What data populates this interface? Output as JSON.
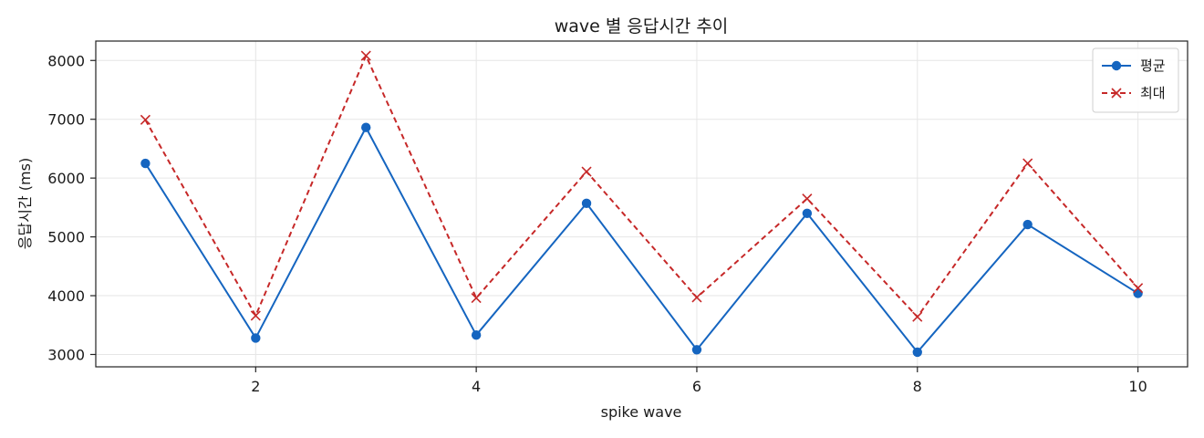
{
  "chart_data": {
    "type": "line",
    "title": "wave 별 응답시간 추이",
    "xlabel": "spike wave",
    "ylabel": "응답시간 (ms)",
    "x": [
      1,
      2,
      3,
      4,
      5,
      6,
      7,
      8,
      9,
      10
    ],
    "xlim": [
      0.55,
      10.45
    ],
    "ylim": [
      2790,
      8330
    ],
    "xticks": [
      2,
      4,
      6,
      8,
      10
    ],
    "yticks": [
      3000,
      4000,
      5000,
      6000,
      7000,
      8000
    ],
    "grid": true,
    "legend_position": "top-right",
    "series": [
      {
        "name": "평균",
        "color": "#1565c0",
        "line_style": "solid",
        "marker": "circle",
        "values": [
          6250,
          3280,
          6860,
          3330,
          5570,
          3080,
          5400,
          3040,
          5210,
          4040
        ]
      },
      {
        "name": "최대",
        "color": "#c62828",
        "line_style": "dashed",
        "marker": "x",
        "values": [
          6990,
          3660,
          8080,
          3960,
          6110,
          3970,
          5650,
          3640,
          6250,
          4130
        ]
      }
    ]
  }
}
